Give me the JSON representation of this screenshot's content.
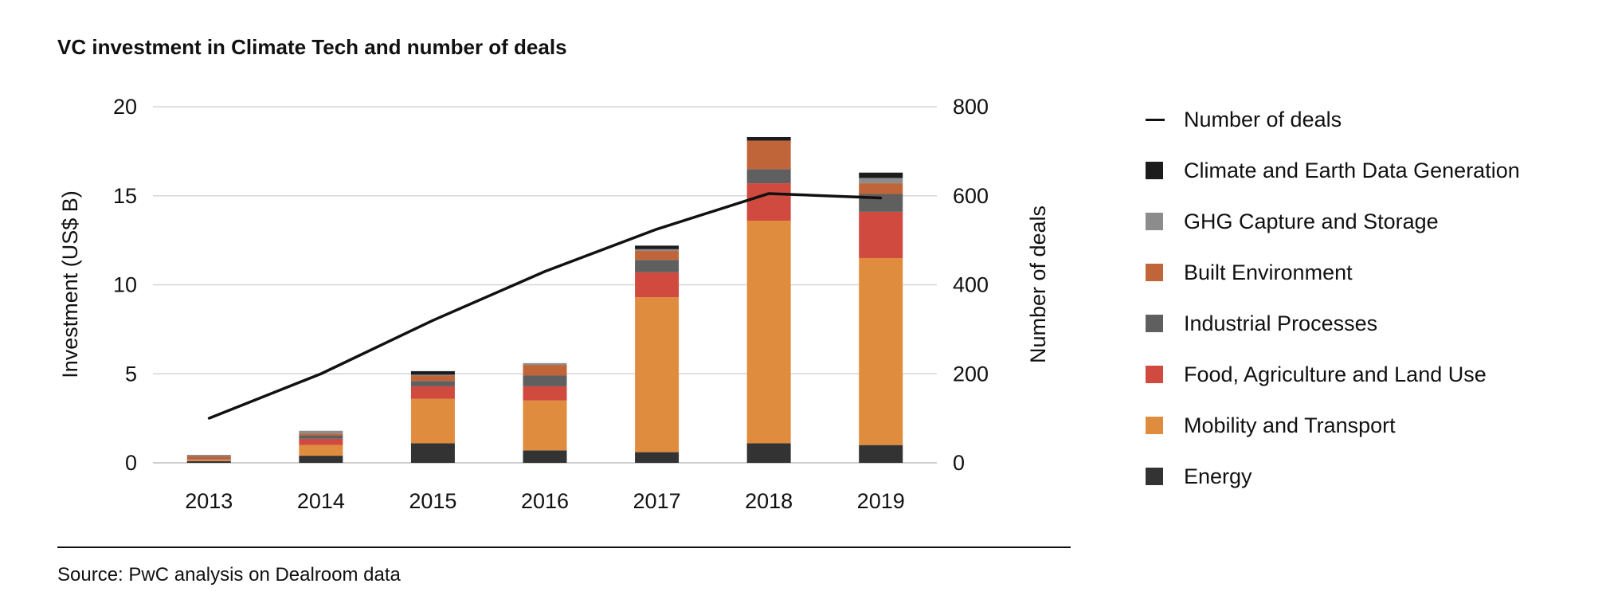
{
  "chart_data": {
    "type": "bar",
    "stacked": true,
    "title": "VC investment in Climate Tech and number of deals",
    "categories": [
      "2013",
      "2014",
      "2015",
      "2016",
      "2017",
      "2018",
      "2019"
    ],
    "ylabel": "Investment (US$ B)",
    "ylim": [
      0,
      20
    ],
    "yticks": [
      "0",
      "5",
      "10",
      "15",
      "20"
    ],
    "y2label": "Number of deals",
    "y2lim": [
      0,
      800
    ],
    "y2ticks": [
      "0",
      "200",
      "400",
      "600",
      "800"
    ],
    "grid": true,
    "legend_position": "right",
    "series": [
      {
        "name": "Energy",
        "color": "#333333",
        "values": [
          0.1,
          0.4,
          1.1,
          0.7,
          0.6,
          1.1,
          1.0
        ]
      },
      {
        "name": "Mobility and Transport",
        "color": "#e08c3e",
        "values": [
          0.1,
          0.6,
          2.5,
          2.8,
          8.7,
          12.5,
          10.5
        ]
      },
      {
        "name": "Food, Agriculture and Land Use",
        "color": "#d04a3f",
        "values": [
          0.05,
          0.35,
          0.7,
          0.8,
          1.4,
          2.1,
          2.6
        ]
      },
      {
        "name": "Industrial Processes",
        "color": "#5f5f5f",
        "values": [
          0.05,
          0.2,
          0.3,
          0.6,
          0.7,
          0.8,
          1.0
        ]
      },
      {
        "name": "Built Environment",
        "color": "#c0653a",
        "values": [
          0.1,
          0.1,
          0.3,
          0.6,
          0.5,
          1.6,
          0.6
        ]
      },
      {
        "name": "GHG Capture and Storage",
        "color": "#8c8c8c",
        "values": [
          0.05,
          0.15,
          0.05,
          0.1,
          0.1,
          0.0,
          0.3
        ]
      },
      {
        "name": "Climate and Earth Data Generation",
        "color": "#1c1c1c",
        "values": [
          0.0,
          0.0,
          0.2,
          0.0,
          0.2,
          0.2,
          0.3
        ]
      }
    ],
    "line_series": {
      "name": "Number of deals",
      "color": "#111111",
      "axis": "right",
      "values": [
        100,
        200,
        320,
        430,
        525,
        605,
        595
      ]
    }
  },
  "legend_items": [
    {
      "label": "Number of deals",
      "kind": "line",
      "color": "#111111"
    },
    {
      "label": "Climate and Earth Data Generation",
      "kind": "box",
      "color": "#1c1c1c"
    },
    {
      "label": "GHG Capture and Storage",
      "kind": "box",
      "color": "#8c8c8c"
    },
    {
      "label": "Built Environment",
      "kind": "box",
      "color": "#c0653a"
    },
    {
      "label": "Industrial Processes",
      "kind": "box",
      "color": "#5f5f5f"
    },
    {
      "label": "Food, Agriculture and Land Use",
      "kind": "box",
      "color": "#d04a3f"
    },
    {
      "label": "Mobility and Transport",
      "kind": "box",
      "color": "#e08c3e"
    },
    {
      "label": "Energy",
      "kind": "box",
      "color": "#333333"
    }
  ],
  "source_note": "Source: PwC analysis on Dealroom data"
}
